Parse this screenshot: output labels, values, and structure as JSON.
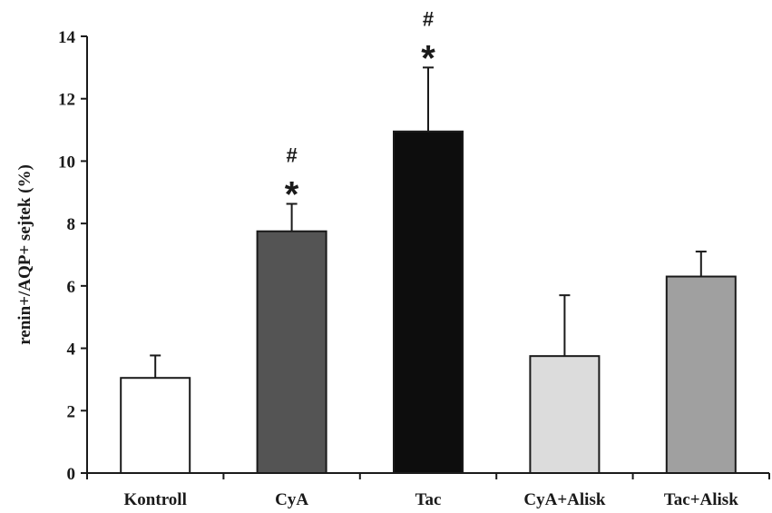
{
  "chart_data": {
    "type": "bar",
    "title": "",
    "xlabel": "",
    "ylabel": "renin+/AQP+ sejtek (%)",
    "ylim": [
      0,
      14
    ],
    "yticks": [
      0,
      2,
      4,
      6,
      8,
      10,
      12,
      14
    ],
    "ytick_labels": [
      "0",
      "2",
      "4",
      "6",
      "8",
      "10",
      "12",
      "14"
    ],
    "categories": [
      "Kontroll",
      "CyA",
      "Tac",
      "CyA+Alisk",
      "Tac+Alisk"
    ],
    "values": [
      3.05,
      7.75,
      10.95,
      3.75,
      6.3
    ],
    "error_upper": [
      0.72,
      0.88,
      2.05,
      1.95,
      0.8
    ],
    "colors": [
      "#ffffff",
      "#545454",
      "#0d0d0d",
      "#dcdcdc",
      "#a0a0a0"
    ],
    "annotations": [
      {
        "category": "CyA",
        "symbols": [
          "#",
          "*"
        ]
      },
      {
        "category": "Tac",
        "symbols": [
          "#",
          "*"
        ]
      }
    ],
    "grid": false,
    "legend": "none"
  }
}
